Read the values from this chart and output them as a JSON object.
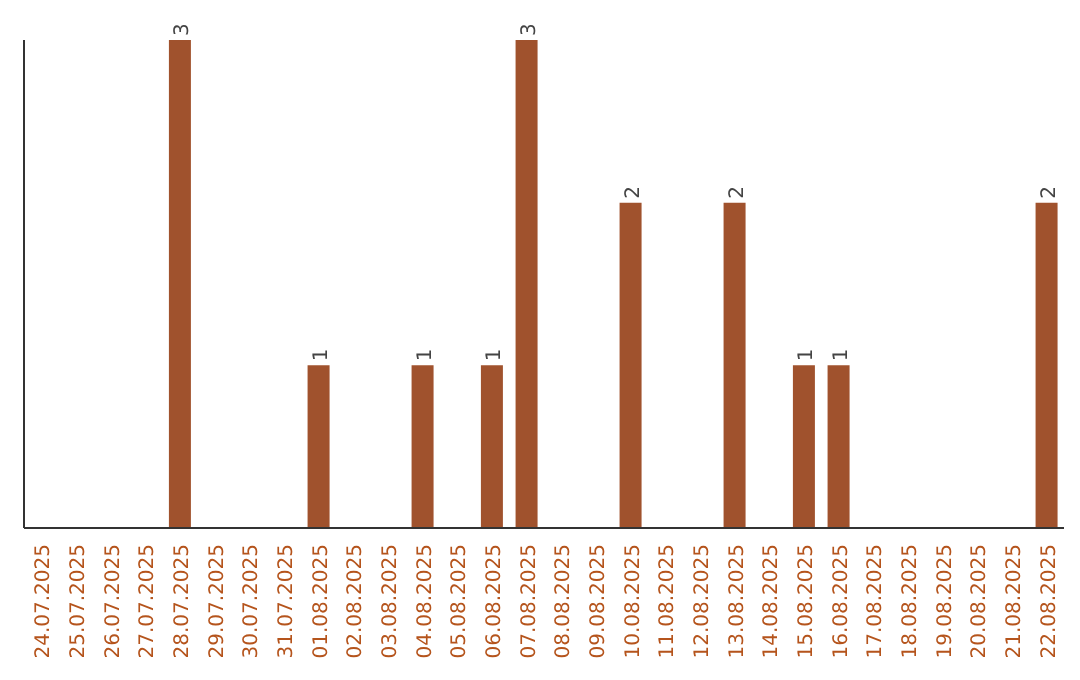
{
  "chart_data": {
    "type": "bar",
    "categories": [
      "24.07.2025",
      "25.07.2025",
      "26.07.2025",
      "27.07.2025",
      "28.07.2025",
      "29.07.2025",
      "30.07.2025",
      "31.07.2025",
      "01.08.2025",
      "02.08.2025",
      "03.08.2025",
      "04.08.2025",
      "05.08.2025",
      "06.08.2025",
      "07.08.2025",
      "08.08.2025",
      "09.08.2025",
      "10.08.2025",
      "11.08.2025",
      "12.08.2025",
      "13.08.2025",
      "14.08.2025",
      "15.08.2025",
      "16.08.2025",
      "17.08.2025",
      "18.08.2025",
      "19.08.2025",
      "20.08.2025",
      "21.08.2025",
      "22.08.2025"
    ],
    "values": [
      0,
      0,
      0,
      0,
      3,
      0,
      0,
      0,
      1,
      0,
      0,
      1,
      0,
      1,
      3,
      0,
      0,
      2,
      0,
      0,
      2,
      0,
      1,
      1,
      0,
      0,
      0,
      0,
      0,
      2
    ],
    "value_labels": [
      null,
      null,
      null,
      null,
      "3",
      null,
      null,
      null,
      "1",
      null,
      null,
      "1",
      null,
      "1",
      "3",
      null,
      null,
      "2",
      null,
      null,
      "2",
      null,
      "1",
      "1",
      null,
      null,
      null,
      null,
      null,
      "2"
    ],
    "color": "#a0522d",
    "grid": false,
    "legend": false
  }
}
